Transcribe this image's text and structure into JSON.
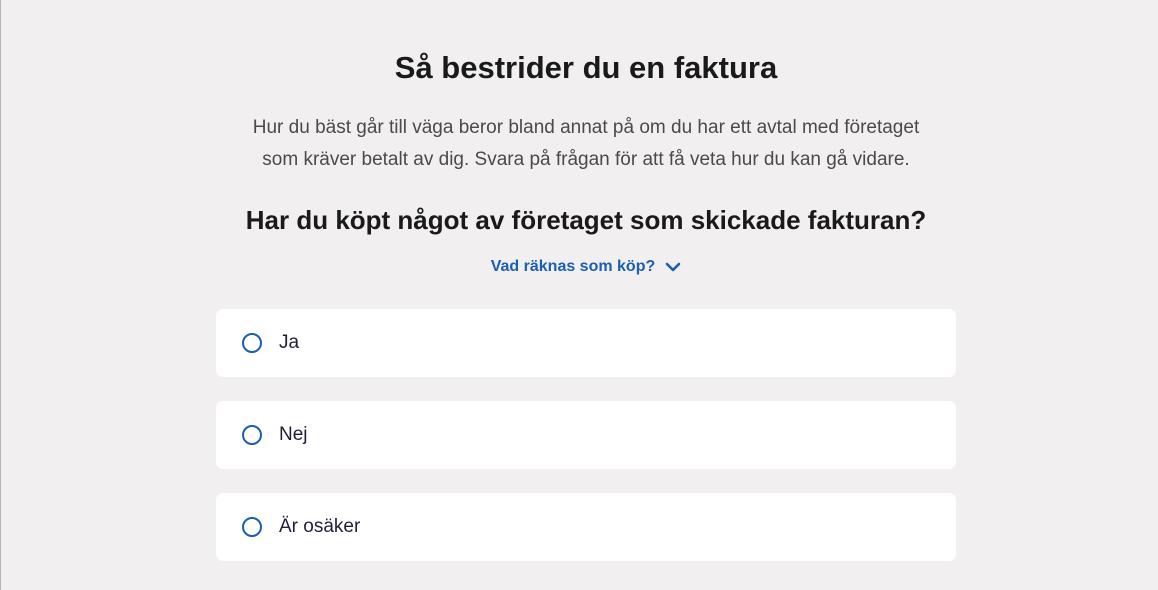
{
  "page": {
    "title": "Så bestrider du en faktura",
    "intro_line1": "Hur du bäst går till väga beror bland annat på om du har ett avtal med företaget",
    "intro_line2": "som kräver betalt av dig. Svara på frågan för att få veta hur du kan gå vidare.",
    "question": "Har du köpt något av företaget som skickade fakturan?",
    "info_toggle": {
      "label": "Vad räknas som köp?",
      "icon": "chevron-down-icon",
      "expanded": false
    },
    "options": [
      {
        "label": "Ja",
        "selected": false
      },
      {
        "label": "Nej",
        "selected": false
      },
      {
        "label": "Är osäker",
        "selected": false
      }
    ]
  },
  "colors": {
    "accent": "#1a5fb4",
    "background": "#f1efef"
  }
}
